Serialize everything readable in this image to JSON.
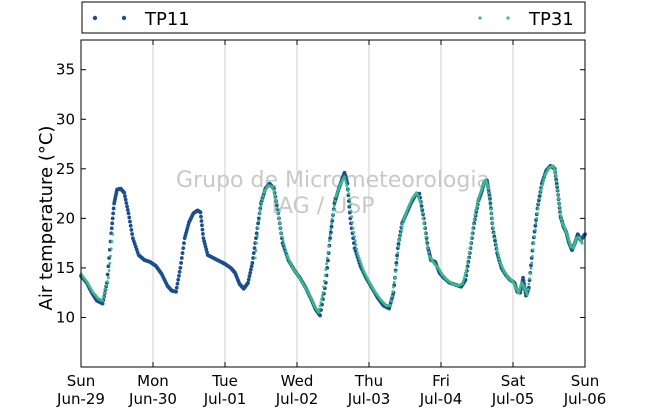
{
  "chart_data": {
    "type": "scatter",
    "ylabel": "Air temperature (°C)",
    "ylim": [
      5,
      38
    ],
    "yticks": [
      10,
      15,
      20,
      25,
      30,
      35
    ],
    "xlim_days": [
      0,
      7
    ],
    "xticks": [
      {
        "day": "Sun",
        "date": "Jun-29"
      },
      {
        "day": "Mon",
        "date": "Jun-30"
      },
      {
        "day": "Tue",
        "date": "Jul-01"
      },
      {
        "day": "Wed",
        "date": "Jul-02"
      },
      {
        "day": "Thu",
        "date": "Jul-03"
      },
      {
        "day": "Fri",
        "date": "Jul-04"
      },
      {
        "day": "Sat",
        "date": "Jul-05"
      },
      {
        "day": "Sun",
        "date": "Jul-06"
      }
    ],
    "grid": "vertical",
    "legend": "top",
    "watermark": [
      "Grupo de Micrometeorologia",
      "IAG / USP"
    ],
    "series": [
      {
        "name": "TP11",
        "color": "#1b4f8f",
        "points": [
          [
            0.0,
            14.2
          ],
          [
            0.08,
            13.5
          ],
          [
            0.15,
            12.5
          ],
          [
            0.22,
            11.7
          ],
          [
            0.3,
            11.4
          ],
          [
            0.36,
            13.5
          ],
          [
            0.42,
            18.5
          ],
          [
            0.46,
            21.5
          ],
          [
            0.5,
            22.9
          ],
          [
            0.55,
            23.0
          ],
          [
            0.6,
            22.6
          ],
          [
            0.66,
            20.5
          ],
          [
            0.72,
            18.0
          ],
          [
            0.8,
            16.3
          ],
          [
            0.88,
            15.8
          ],
          [
            0.96,
            15.6
          ],
          [
            1.04,
            15.2
          ],
          [
            1.12,
            14.4
          ],
          [
            1.2,
            13.2
          ],
          [
            1.26,
            12.7
          ],
          [
            1.32,
            12.6
          ],
          [
            1.38,
            15.0
          ],
          [
            1.44,
            18.0
          ],
          [
            1.5,
            19.6
          ],
          [
            1.56,
            20.5
          ],
          [
            1.62,
            20.8
          ],
          [
            1.66,
            20.6
          ],
          [
            1.7,
            18.0
          ],
          [
            1.76,
            16.3
          ],
          [
            1.84,
            16.0
          ],
          [
            1.92,
            15.7
          ],
          [
            2.0,
            15.4
          ],
          [
            2.08,
            15.0
          ],
          [
            2.14,
            14.5
          ],
          [
            2.2,
            13.4
          ],
          [
            2.26,
            12.9
          ],
          [
            2.32,
            13.5
          ],
          [
            2.38,
            15.5
          ],
          [
            2.44,
            18.5
          ],
          [
            2.5,
            21.5
          ],
          [
            2.56,
            23.0
          ],
          [
            2.62,
            23.5
          ],
          [
            2.68,
            23.0
          ],
          [
            2.74,
            20.5
          ],
          [
            2.8,
            17.5
          ],
          [
            2.88,
            15.8
          ],
          [
            2.96,
            14.8
          ],
          [
            3.04,
            14.0
          ],
          [
            3.12,
            13.0
          ],
          [
            3.2,
            11.8
          ],
          [
            3.26,
            10.8
          ],
          [
            3.32,
            10.2
          ],
          [
            3.4,
            13.5
          ],
          [
            3.46,
            18.0
          ],
          [
            3.52,
            21.5
          ],
          [
            3.58,
            23.0
          ],
          [
            3.62,
            23.8
          ],
          [
            3.66,
            24.6
          ],
          [
            3.7,
            23.5
          ],
          [
            3.74,
            20.0
          ],
          [
            3.8,
            17.0
          ],
          [
            3.88,
            15.2
          ],
          [
            3.96,
            14.0
          ],
          [
            4.04,
            13.0
          ],
          [
            4.12,
            12.0
          ],
          [
            4.2,
            11.2
          ],
          [
            4.28,
            10.9
          ],
          [
            4.34,
            12.5
          ],
          [
            4.4,
            17.0
          ],
          [
            4.46,
            19.5
          ],
          [
            4.52,
            20.5
          ],
          [
            4.58,
            21.5
          ],
          [
            4.64,
            22.3
          ],
          [
            4.7,
            22.5
          ],
          [
            4.76,
            20.0
          ],
          [
            4.82,
            17.0
          ],
          [
            4.86,
            15.8
          ],
          [
            4.92,
            15.6
          ],
          [
            4.98,
            14.5
          ],
          [
            5.04,
            14.0
          ],
          [
            5.12,
            13.5
          ],
          [
            5.2,
            13.3
          ],
          [
            5.28,
            13.1
          ],
          [
            5.34,
            13.8
          ],
          [
            5.4,
            16.5
          ],
          [
            5.46,
            19.5
          ],
          [
            5.52,
            21.8
          ],
          [
            5.56,
            22.6
          ],
          [
            5.6,
            23.6
          ],
          [
            5.64,
            23.8
          ],
          [
            5.68,
            22.0
          ],
          [
            5.72,
            19.0
          ],
          [
            5.78,
            16.5
          ],
          [
            5.84,
            15.0
          ],
          [
            5.9,
            14.3
          ],
          [
            5.96,
            13.8
          ],
          [
            6.02,
            13.5
          ],
          [
            6.06,
            12.6
          ],
          [
            6.1,
            12.5
          ],
          [
            6.14,
            14.0
          ],
          [
            6.18,
            12.2
          ],
          [
            6.22,
            13.0
          ],
          [
            6.28,
            17.5
          ],
          [
            6.34,
            21.0
          ],
          [
            6.4,
            23.5
          ],
          [
            6.46,
            24.8
          ],
          [
            6.52,
            25.3
          ],
          [
            6.58,
            25.0
          ],
          [
            6.62,
            22.8
          ],
          [
            6.66,
            20.2
          ],
          [
            6.7,
            19.2
          ],
          [
            6.74,
            18.6
          ],
          [
            6.78,
            17.5
          ],
          [
            6.82,
            16.8
          ],
          [
            6.86,
            17.5
          ],
          [
            6.9,
            18.4
          ],
          [
            6.94,
            17.8
          ],
          [
            7.0,
            18.4
          ]
        ]
      },
      {
        "name": "TP31",
        "color": "#3cb887",
        "points": [
          [
            0.0,
            14.4
          ],
          [
            0.08,
            13.6
          ],
          [
            0.16,
            12.6
          ],
          [
            0.24,
            11.9
          ],
          [
            0.3,
            11.7
          ],
          [
            0.38,
            14.0
          ],
          [
            0.44,
            18.4
          ],
          [
            2.42,
            16.0
          ],
          [
            2.48,
            20.5
          ],
          [
            2.54,
            22.6
          ],
          [
            2.6,
            23.3
          ],
          [
            2.66,
            23.2
          ],
          [
            2.72,
            21.5
          ],
          [
            2.78,
            18.5
          ],
          [
            2.86,
            16.3
          ],
          [
            2.94,
            15.0
          ],
          [
            3.02,
            14.2
          ],
          [
            3.1,
            13.2
          ],
          [
            3.18,
            12.2
          ],
          [
            3.24,
            11.2
          ],
          [
            3.3,
            10.5
          ],
          [
            3.36,
            12.5
          ],
          [
            3.42,
            16.0
          ],
          [
            3.48,
            19.5
          ],
          [
            3.54,
            22.2
          ],
          [
            3.6,
            23.4
          ],
          [
            3.66,
            24.2
          ],
          [
            3.72,
            22.5
          ],
          [
            3.78,
            19.0
          ],
          [
            3.84,
            16.5
          ],
          [
            3.92,
            14.8
          ],
          [
            4.0,
            13.6
          ],
          [
            4.08,
            12.6
          ],
          [
            4.16,
            11.8
          ],
          [
            4.24,
            11.2
          ],
          [
            4.3,
            11.2
          ],
          [
            4.36,
            14.0
          ],
          [
            4.42,
            17.8
          ],
          [
            4.48,
            19.8
          ],
          [
            4.54,
            21.0
          ],
          [
            4.6,
            22.0
          ],
          [
            4.66,
            22.6
          ],
          [
            4.72,
            21.5
          ],
          [
            4.78,
            18.5
          ],
          [
            4.84,
            16.2
          ],
          [
            4.9,
            15.5
          ],
          [
            4.96,
            15.0
          ],
          [
            5.02,
            14.3
          ],
          [
            5.08,
            13.8
          ],
          [
            5.16,
            13.4
          ],
          [
            5.24,
            13.2
          ],
          [
            5.3,
            13.4
          ],
          [
            5.36,
            15.0
          ],
          [
            5.42,
            18.0
          ],
          [
            5.48,
            20.8
          ],
          [
            5.54,
            22.4
          ],
          [
            5.58,
            23.2
          ],
          [
            5.62,
            23.9
          ],
          [
            5.66,
            23.0
          ],
          [
            5.7,
            20.5
          ],
          [
            5.76,
            17.5
          ],
          [
            5.82,
            15.6
          ],
          [
            5.88,
            14.6
          ],
          [
            5.94,
            14.0
          ],
          [
            6.0,
            13.6
          ],
          [
            6.04,
            13.0
          ],
          [
            6.08,
            12.5
          ],
          [
            6.12,
            13.5
          ],
          [
            6.16,
            13.0
          ],
          [
            6.2,
            12.3
          ],
          [
            6.26,
            15.5
          ],
          [
            6.32,
            19.5
          ],
          [
            6.38,
            22.5
          ],
          [
            6.44,
            24.3
          ],
          [
            6.5,
            25.1
          ],
          [
            6.56,
            25.3
          ],
          [
            6.6,
            24.2
          ],
          [
            6.64,
            21.5
          ],
          [
            6.68,
            19.6
          ],
          [
            6.72,
            19.0
          ],
          [
            6.76,
            18.2
          ],
          [
            6.8,
            17.2
          ],
          [
            6.84,
            17.0
          ],
          [
            6.88,
            18.0
          ],
          [
            6.92,
            18.1
          ],
          [
            6.96,
            17.5
          ]
        ]
      }
    ]
  }
}
